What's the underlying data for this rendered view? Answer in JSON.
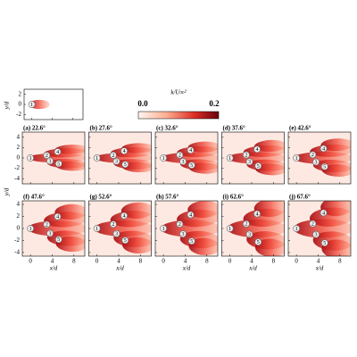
{
  "colorbar": {
    "label": "k/U∞²",
    "min": "0.0",
    "max": "0.2"
  },
  "axes": {
    "xlabel": "x/d",
    "ylabel": "y/d",
    "xticks": [
      "0",
      "4",
      "8"
    ],
    "yticks": [
      "4",
      "2",
      "0",
      "-2",
      "-4"
    ],
    "inset_yticks": [
      "2",
      "0",
      "-2"
    ]
  },
  "markers": [
    "1",
    "2",
    "3",
    "4",
    "5"
  ],
  "panels": [
    {
      "label": "(a) 22.6°"
    },
    {
      "label": "(b) 27.6°"
    },
    {
      "label": "(c) 32.6°"
    },
    {
      "label": "(d) 37.6°"
    },
    {
      "label": "(e) 42.6°"
    },
    {
      "label": "(f) 47.6°"
    },
    {
      "label": "(g) 52.6°"
    },
    {
      "label": "(h) 57.6°"
    },
    {
      "label": "(i) 62.6°"
    },
    {
      "label": "(j) 67.6°"
    }
  ]
}
